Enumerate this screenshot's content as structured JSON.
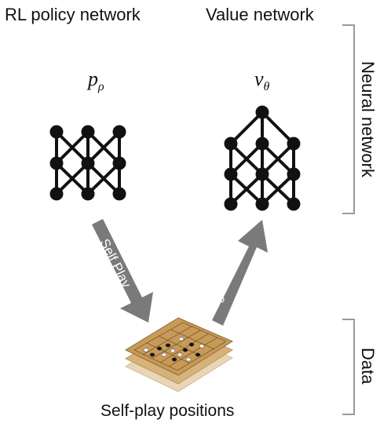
{
  "policy_network": {
    "title": "RL policy network",
    "symbol": "p",
    "subscript": "ρ"
  },
  "value_network": {
    "title": "Value network",
    "symbol": "v",
    "subscript": "θ"
  },
  "arrows": {
    "self_play": "Self Play",
    "regression": "Regression"
  },
  "board": {
    "caption": "Self-play positions"
  },
  "brackets": {
    "neural": "Neural network",
    "data": "Data"
  },
  "colors": {
    "node": "#111111",
    "arrow": "#7a7a7a",
    "bracket": "#9a9a9a",
    "board_top": "#c89a57",
    "board_mid": "#d6b27b",
    "board_low": "#e8d6b6"
  }
}
